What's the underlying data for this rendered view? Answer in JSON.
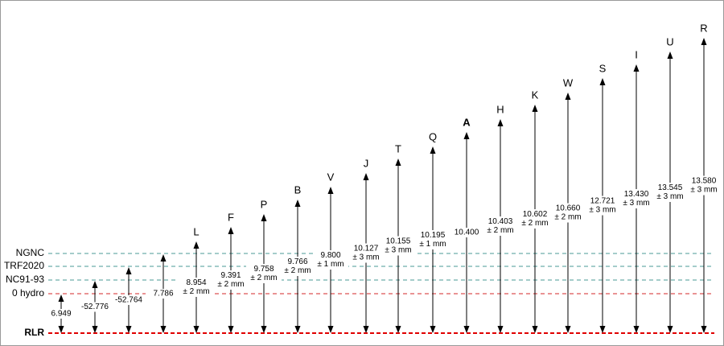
{
  "references": [
    {
      "label": "NGNC",
      "color": "#4a9a96"
    },
    {
      "label": "TRF2020",
      "color": "#4a9a96"
    },
    {
      "label": "NC91-93",
      "color": "#4a9a96"
    },
    {
      "label": "0 hydro",
      "color": "#d62728"
    },
    {
      "label": "RLR",
      "color": "#e00000",
      "bold": true
    }
  ],
  "columns": [
    {
      "value": "6.949"
    },
    {
      "value": "-52.776"
    },
    {
      "value": "-52.764"
    },
    {
      "value": "7.786"
    },
    {
      "label": "L",
      "value": "8.954",
      "uncertainty": "± 2 mm"
    },
    {
      "label": "F",
      "value": "9.391",
      "uncertainty": "± 2 mm"
    },
    {
      "label": "P",
      "value": "9.758",
      "uncertainty": "± 2 mm"
    },
    {
      "label": "B",
      "value": "9.766",
      "uncertainty": "± 2 mm"
    },
    {
      "label": "V",
      "value": "9.800",
      "uncertainty": "± 1 mm"
    },
    {
      "label": "J",
      "value": "10.127",
      "uncertainty": "± 3 mm"
    },
    {
      "label": "T",
      "value": "10.155",
      "uncertainty": "± 3 mm"
    },
    {
      "label": "Q",
      "value": "10.195",
      "uncertainty": "± 1 mm"
    },
    {
      "label": "A",
      "value": "10.400",
      "bold": true
    },
    {
      "label": "H",
      "value": "10.403",
      "uncertainty": "± 2 mm"
    },
    {
      "label": "K",
      "value": "10.602",
      "uncertainty": "± 2 mm"
    },
    {
      "label": "W",
      "value": "10.660",
      "uncertainty": "± 2 mm"
    },
    {
      "label": "S",
      "value": "12.721",
      "uncertainty": "± 3 mm"
    },
    {
      "label": "I",
      "value": "13.430",
      "uncertainty": "± 3 mm"
    },
    {
      "label": "U",
      "value": "13.545",
      "uncertainty": "± 3 mm"
    },
    {
      "label": "R",
      "value": "13.580",
      "uncertainty": "± 3 mm"
    }
  ]
}
